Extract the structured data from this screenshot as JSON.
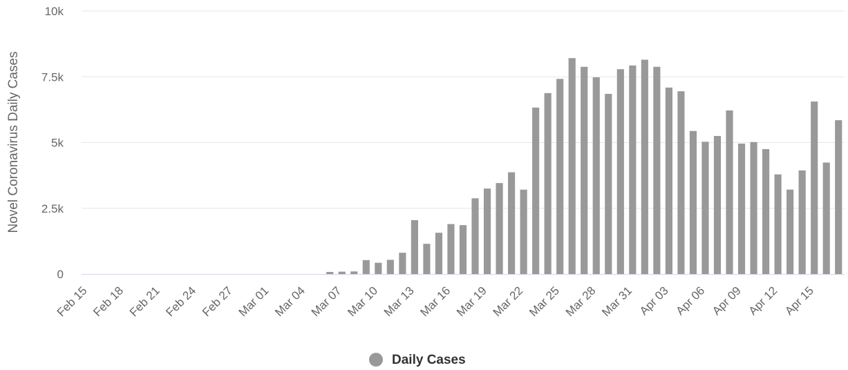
{
  "chart_data": {
    "type": "bar",
    "title": "",
    "xlabel": "",
    "ylabel": "Novel Coronavirus Daily Cases",
    "ylim": [
      0,
      10000
    ],
    "yticks": [
      0,
      2500,
      5000,
      7500,
      10000
    ],
    "ytick_labels": [
      "0",
      "2.5k",
      "5k",
      "7.5k",
      "10k"
    ],
    "xtick_labels": [
      "Feb 15",
      "Feb 18",
      "Feb 21",
      "Feb 24",
      "Feb 27",
      "Mar 01",
      "Mar 04",
      "Mar 07",
      "Mar 10",
      "Mar 13",
      "Mar 16",
      "Mar 19",
      "Mar 22",
      "Mar 25",
      "Mar 28",
      "Mar 31",
      "Apr 03",
      "Apr 06",
      "Apr 09",
      "Apr 12",
      "Apr 15"
    ],
    "categories": [
      "Feb 15",
      "Feb 16",
      "Feb 17",
      "Feb 18",
      "Feb 19",
      "Feb 20",
      "Feb 21",
      "Feb 22",
      "Feb 23",
      "Feb 24",
      "Feb 25",
      "Feb 26",
      "Feb 27",
      "Feb 28",
      "Feb 29",
      "Mar 01",
      "Mar 02",
      "Mar 03",
      "Mar 04",
      "Mar 05",
      "Mar 06",
      "Mar 07",
      "Mar 08",
      "Mar 09",
      "Mar 10",
      "Mar 11",
      "Mar 12",
      "Mar 13",
      "Mar 14",
      "Mar 15",
      "Mar 16",
      "Mar 17",
      "Mar 18",
      "Mar 19",
      "Mar 20",
      "Mar 21",
      "Mar 22",
      "Mar 23",
      "Mar 24",
      "Mar 25",
      "Mar 26",
      "Mar 27",
      "Mar 28",
      "Mar 29",
      "Mar 30",
      "Mar 31",
      "Apr 01",
      "Apr 02",
      "Apr 03",
      "Apr 04",
      "Apr 05",
      "Apr 06",
      "Apr 07",
      "Apr 08",
      "Apr 09",
      "Apr 10",
      "Apr 11",
      "Apr 12",
      "Apr 13",
      "Apr 14",
      "Apr 15",
      "Apr 16",
      "Apr 17"
    ],
    "series": [
      {
        "name": "Daily Cases",
        "color": "#999999",
        "values": [
          0,
          0,
          0,
          0,
          0,
          0,
          0,
          0,
          0,
          0,
          0,
          0,
          0,
          0,
          0,
          0,
          0,
          0,
          0,
          0,
          80,
          90,
          100,
          530,
          430,
          540,
          810,
          2050,
          1150,
          1570,
          1900,
          1860,
          2880,
          3250,
          3460,
          3870,
          3210,
          6330,
          6880,
          7420,
          8210,
          7880,
          7480,
          6850,
          7790,
          7930,
          8150,
          7880,
          7090,
          6950,
          5440,
          5030,
          5250,
          6220,
          4960,
          5020,
          4750,
          3790,
          3210,
          3940,
          6560,
          4240,
          5850
        ]
      }
    ],
    "grid": true,
    "legend": "bottom-center"
  },
  "colors": {
    "bar": "#999999",
    "grid": "#e6e6e6",
    "axis": "#ccd6eb",
    "text": "#666666"
  }
}
